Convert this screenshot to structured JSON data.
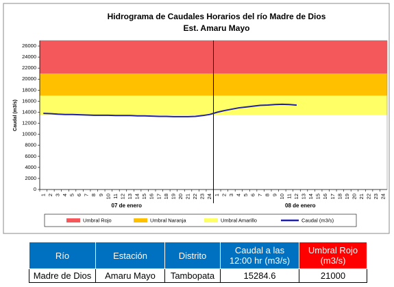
{
  "chart_data": {
    "type": "line",
    "title": "Hidrograma de Caudales Horarios del río Madre de Dios",
    "subtitle": "Est. Amaru Mayo",
    "ylabel": "Caudal (m3/s)",
    "categories": [
      "1",
      "2",
      "3",
      "4",
      "5",
      "6",
      "7",
      "8",
      "9",
      "10",
      "11",
      "12",
      "13",
      "14",
      "15",
      "16",
      "17",
      "18",
      "19",
      "20",
      "21",
      "22",
      "23",
      "24",
      "1",
      "2",
      "3",
      "4",
      "5",
      "6",
      "7",
      "8",
      "9",
      "10",
      "11",
      "12",
      "13",
      "14",
      "15",
      "16",
      "17",
      "18",
      "19",
      "20",
      "21",
      "22",
      "23",
      "24"
    ],
    "x_groups": [
      "07 de enero",
      "08 de enero"
    ],
    "ylim": [
      0,
      27000
    ],
    "yticks": [
      0,
      2000,
      4000,
      6000,
      8000,
      10000,
      12000,
      14000,
      16000,
      18000,
      20000,
      22000,
      24000,
      26000
    ],
    "bands": [
      {
        "name": "Umbral Rojo",
        "color": "#f4585a",
        "min": 21000,
        "max": 27000
      },
      {
        "name": "Umbral Naranja",
        "color": "#ffc000",
        "min": 17000,
        "max": 21000
      },
      {
        "name": "Umbral Amarillo",
        "color": "#ffff66",
        "min": 13500,
        "max": 17000
      }
    ],
    "series": [
      {
        "name": "Caudal (m3/s)",
        "color": "#1f1fa8",
        "values": [
          13800,
          13750,
          13650,
          13600,
          13600,
          13550,
          13500,
          13450,
          13450,
          13450,
          13400,
          13400,
          13400,
          13350,
          13350,
          13300,
          13250,
          13250,
          13200,
          13200,
          13200,
          13250,
          13400,
          13600,
          14000,
          14300,
          14550,
          14800,
          14950,
          15100,
          15250,
          15300,
          15400,
          15450,
          15400,
          15284.6,
          null,
          null,
          null,
          null,
          null,
          null,
          null,
          null,
          null,
          null,
          null,
          null
        ]
      }
    ]
  },
  "table": {
    "headers": [
      "Río",
      "Estación",
      "Distrito",
      "Caudal a las 12:00 hr  (m3/s)",
      "Umbral Rojo (m3/s)"
    ],
    "rows": [
      [
        "Madre de Dios",
        "Amaru Mayo",
        "Tambopata",
        "15284.6",
        "21000"
      ]
    ]
  }
}
